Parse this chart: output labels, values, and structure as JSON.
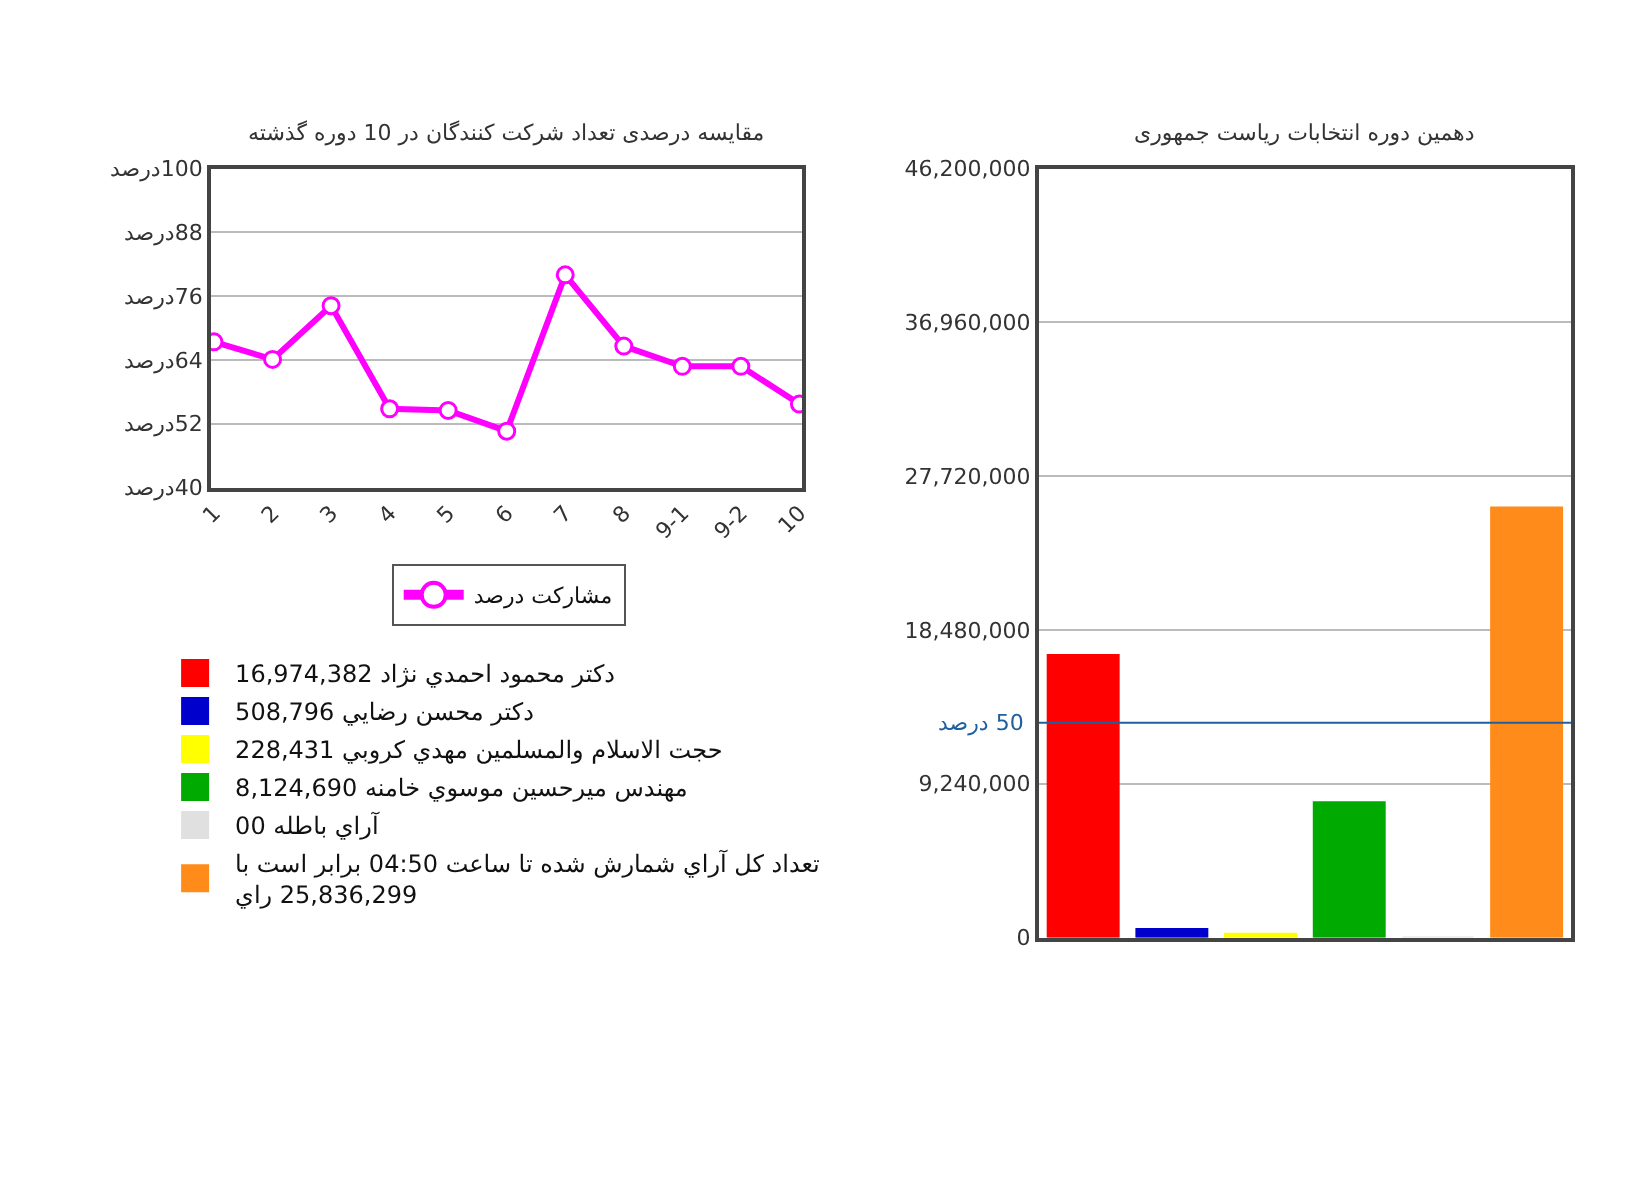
{
  "chart_data": [
    {
      "type": "line",
      "title": "مقایسه درصدی تعداد شرکت کنندگان در 10 دوره گذشته",
      "categories": [
        "1",
        "2",
        "3",
        "4",
        "5",
        "6",
        "7",
        "8",
        "9-1",
        "9-2",
        "10"
      ],
      "series": [
        {
          "name": "مشارکت درصد",
          "color": "#ff00ff",
          "values": [
            67.4,
            64.1,
            74.2,
            54.8,
            54.5,
            50.6,
            80.0,
            66.6,
            62.8,
            62.8,
            55.7
          ]
        }
      ],
      "ylim": [
        40,
        100
      ],
      "yticks": [
        {
          "value": 40,
          "label": "40درصد"
        },
        {
          "value": 52,
          "label": "52درصد"
        },
        {
          "value": 64,
          "label": "64درصد"
        },
        {
          "value": 76,
          "label": "76درصد"
        },
        {
          "value": 88,
          "label": "88درصد"
        },
        {
          "value": 100,
          "label": "100درصد"
        }
      ],
      "grid": "y",
      "legend": "bottom",
      "marker": "circle",
      "line_style": "solid"
    },
    {
      "type": "bar",
      "title": "دهمین دوره انتخابات ریاست جمهوری",
      "categories": [
        null,
        null,
        null,
        null,
        null,
        null
      ],
      "series": [
        {
          "name": "دکتر محمود احمدي نژاد 16,974,382",
          "color": "#ff0000",
          "values": [
            16974382,
            null,
            null,
            null,
            null,
            null
          ]
        },
        {
          "name": "دکتر محسن رضايي 508,796",
          "color": "#0000cc",
          "values": [
            null,
            508796,
            null,
            null,
            null,
            null
          ]
        },
        {
          "name": "حجت الاسلام والمسلمين مهدي کروبي 228,431",
          "color": "#ffff00",
          "values": [
            null,
            null,
            228431,
            null,
            null,
            null
          ]
        },
        {
          "name": "مهندس ميرحسين موسوي خامنه 8,124,690",
          "color": "#00aa00",
          "values": [
            null,
            null,
            null,
            8124690,
            null,
            null
          ]
        },
        {
          "name": "آراي باطله 00",
          "color": "#e0e0e0",
          "values": [
            null,
            null,
            null,
            null,
            0,
            null
          ]
        },
        {
          "name": "تعداد کل آراي شمارش شده تا ساعت 04:50 برابر است با\n25,836,299 راي",
          "color": "#ff8c1a",
          "values": [
            null,
            null,
            null,
            null,
            null,
            25836299
          ]
        }
      ],
      "ylim": [
        0,
        46200000
      ],
      "yticks": [
        {
          "value": 0,
          "label": "0"
        },
        {
          "value": 9240000,
          "label": "9,240,000"
        },
        {
          "value": 18480000,
          "label": "18,480,000"
        },
        {
          "value": 27720000,
          "label": "27,720,000"
        },
        {
          "value": 36960000,
          "label": "36,960,000"
        },
        {
          "value": 46200000,
          "label": "46,200,000"
        }
      ],
      "ref_lines": [
        {
          "axis": "y",
          "value": 12900000,
          "label": "50 درصد",
          "color": "#1f5f9f"
        }
      ],
      "grid": "y",
      "legend": "left"
    }
  ]
}
